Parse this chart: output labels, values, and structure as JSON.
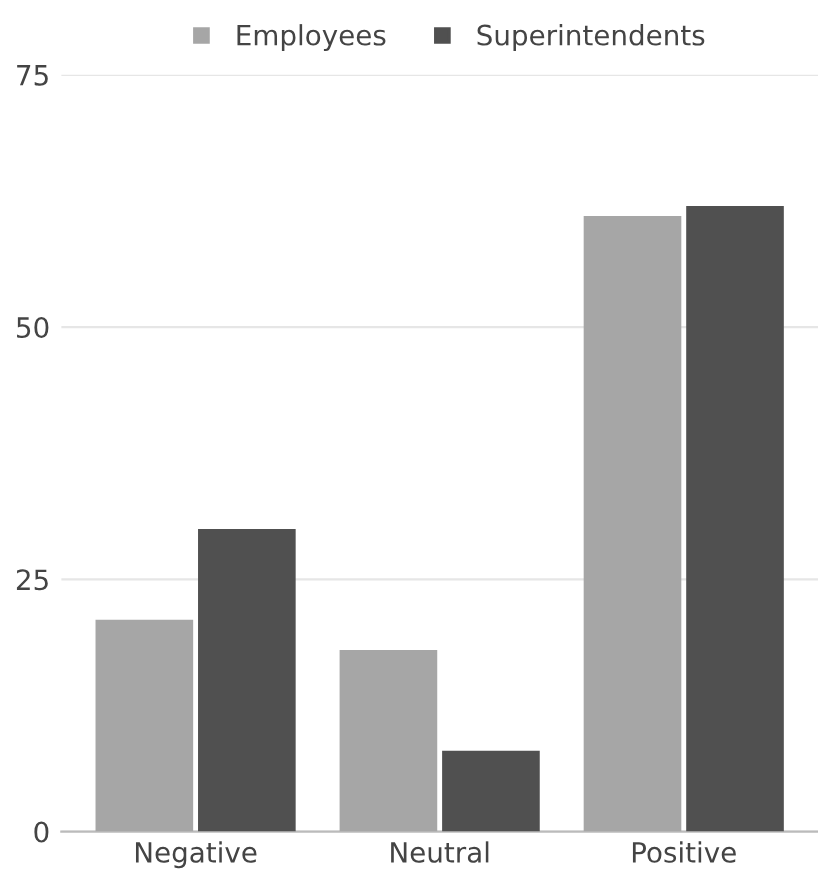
{
  "chart_data": {
    "type": "bar",
    "categories": [
      "Negative",
      "Neutral",
      "Positive"
    ],
    "series": [
      {
        "name": "Employees",
        "color": "#a6a6a6",
        "values": [
          21,
          18,
          61
        ]
      },
      {
        "name": "Superintendents",
        "color": "#505050",
        "values": [
          30,
          8,
          62
        ]
      }
    ],
    "ylim": [
      0,
      75
    ],
    "yticks": [
      0,
      25,
      50,
      75
    ],
    "grid": "y",
    "legend": "top"
  }
}
